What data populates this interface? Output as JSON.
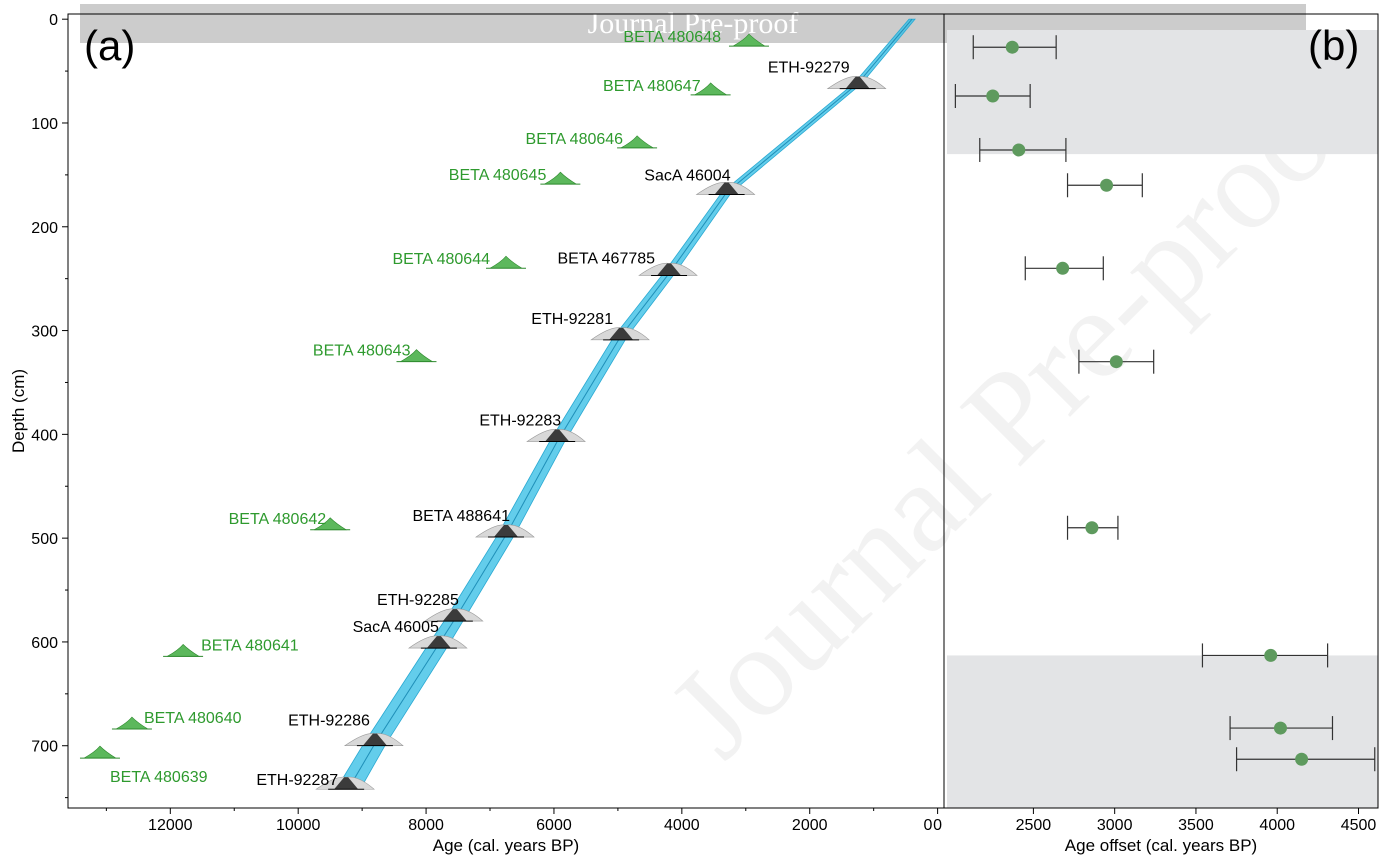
{
  "banner": "Journal Pre-proof",
  "watermark": "Journal Pre-proof",
  "chart_data": [
    {
      "type": "scatter",
      "panel_label": "(a)",
      "xlabel": "Age (cal. years BP)",
      "ylabel": "Depth (cm)",
      "xlim": [
        13600,
        -100
      ],
      "ylim": [
        760,
        -5
      ],
      "x_reversed": true,
      "y_reversed": true,
      "xticks": [
        12000,
        10000,
        8000,
        6000,
        4000,
        2000,
        0
      ],
      "yticks": [
        0,
        100,
        200,
        300,
        400,
        500,
        600,
        700
      ],
      "age_depth_model": {
        "color": "#3cc0e6",
        "points": [
          [
            400,
            0
          ],
          [
            1250,
            62
          ],
          [
            3300,
            167
          ],
          [
            4200,
            245
          ],
          [
            4950,
            305
          ],
          [
            5950,
            407
          ],
          [
            6750,
            497
          ],
          [
            7550,
            578
          ],
          [
            7800,
            602
          ],
          [
            8800,
            698
          ],
          [
            9200,
            740
          ]
        ]
      },
      "dated_series": [
        {
          "color": "#000000",
          "points": [
            {
              "label": "ETH-92279",
              "age": 1250,
              "depth": 65
            },
            {
              "label": "SacA 46004",
              "age": 3300,
              "depth": 167
            },
            {
              "label": "BETA 467785",
              "age": 4200,
              "depth": 245
            },
            {
              "label": "ETH-92281",
              "age": 4950,
              "depth": 307
            },
            {
              "label": "ETH-92283",
              "age": 5950,
              "depth": 405
            },
            {
              "label": "BETA 488641",
              "age": 6750,
              "depth": 497
            },
            {
              "label": "ETH-92285",
              "age": 7550,
              "depth": 578
            },
            {
              "label": "SacA 46005",
              "age": 7800,
              "depth": 604
            },
            {
              "label": "ETH-92286",
              "age": 8800,
              "depth": 698
            },
            {
              "label": "ETH-92287",
              "age": 9250,
              "depth": 740
            }
          ]
        },
        {
          "color": "#2e9a2e",
          "points": [
            {
              "label": "BETA 480648",
              "age": 2950,
              "depth": 24
            },
            {
              "label": "BETA 480647",
              "age": 3550,
              "depth": 71
            },
            {
              "label": "BETA 480646",
              "age": 4700,
              "depth": 122
            },
            {
              "label": "BETA 480645",
              "age": 5900,
              "depth": 157
            },
            {
              "label": "BETA 480644",
              "age": 6750,
              "depth": 238
            },
            {
              "label": "BETA 480643",
              "age": 8150,
              "depth": 328
            },
            {
              "label": "BETA 480642",
              "age": 9500,
              "depth": 490
            },
            {
              "label": "BETA 480641",
              "age": 11800,
              "depth": 612
            },
            {
              "label": "BETA 480640",
              "age": 12600,
              "depth": 682
            },
            {
              "label": "BETA 480639",
              "age": 13100,
              "depth": 710
            }
          ]
        }
      ]
    },
    {
      "type": "scatter",
      "panel_label": "(b)",
      "xlabel": "Age offset (cal. years BP)",
      "xlim": [
        1950,
        4620
      ],
      "xticks": [
        2500,
        3000,
        3500,
        4000,
        4500
      ],
      "xtick_labels": [
        "2500",
        "3000",
        "3500",
        "4000",
        "4500"
      ],
      "x0_label": "0",
      "shaded_bands": [
        [
          0,
          130
        ],
        [
          613,
          760
        ]
      ],
      "shade_color": "#e3e4e6",
      "point_color": "#5e9a5e",
      "points": [
        {
          "depth": 27,
          "offset": 2370,
          "err": [
            2130,
            2640
          ]
        },
        {
          "depth": 74,
          "offset": 2250,
          "err": [
            2020,
            2480
          ]
        },
        {
          "depth": 126,
          "offset": 2410,
          "err": [
            2170,
            2700
          ]
        },
        {
          "depth": 160,
          "offset": 2950,
          "err": [
            2710,
            3170
          ]
        },
        {
          "depth": 240,
          "offset": 2680,
          "err": [
            2450,
            2930
          ]
        },
        {
          "depth": 330,
          "offset": 3010,
          "err": [
            2780,
            3240
          ]
        },
        {
          "depth": 490,
          "offset": 2860,
          "err": [
            2710,
            3020
          ]
        },
        {
          "depth": 613,
          "offset": 3960,
          "err": [
            3540,
            4310
          ]
        },
        {
          "depth": 683,
          "offset": 4020,
          "err": [
            3710,
            4340
          ]
        },
        {
          "depth": 713,
          "offset": 4150,
          "err": [
            3750,
            4600
          ]
        }
      ]
    }
  ]
}
